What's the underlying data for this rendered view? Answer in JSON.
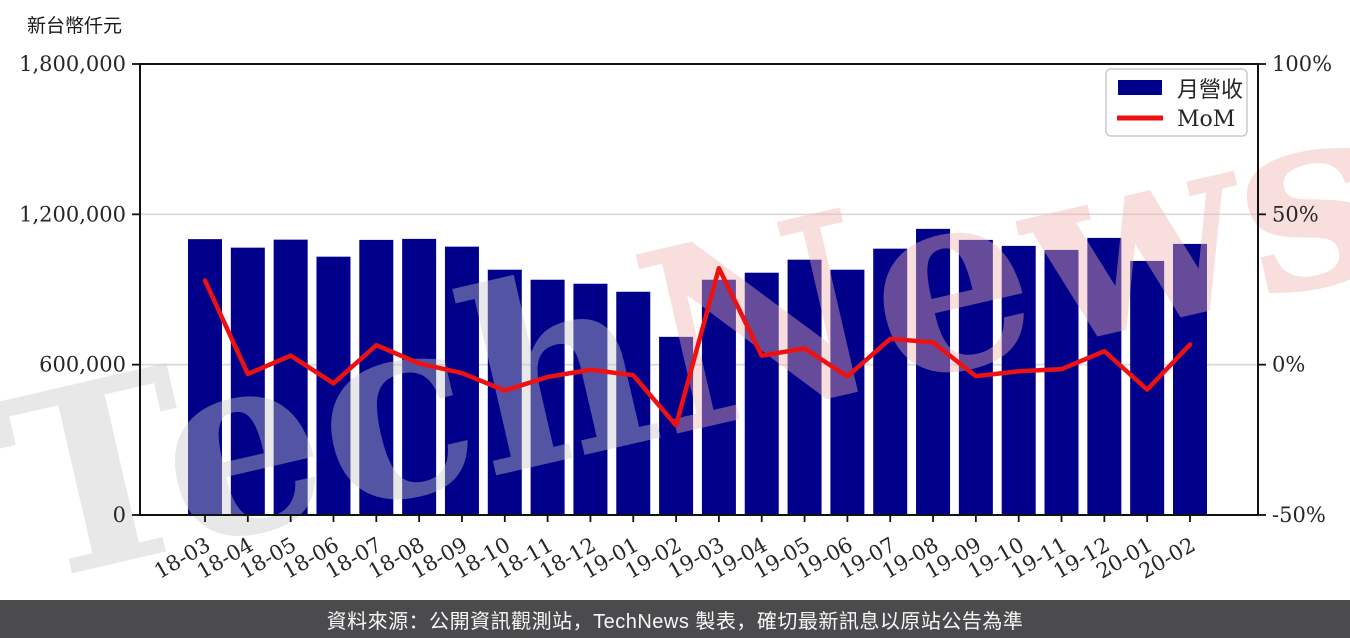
{
  "unit_label": "新台幣仟元",
  "watermark": {
    "text_gray": "Tech",
    "text_pink": "News",
    "gray_color": "#c9c9c9",
    "pink_color": "#f2b3b3",
    "opacity": 0.42
  },
  "legend": {
    "bar_label": "月營收",
    "line_label": "MoM"
  },
  "footer": {
    "text": "資料來源：公開資訊觀測站，TechNews 製表，確切最新訊息以原站公告為準"
  },
  "colors": {
    "bar": "#00008b",
    "line": "#ee1111",
    "grid": "#d9d9d9",
    "axis": "#111111",
    "tick_text": "#262626",
    "footer_bg": "#4b4b4d",
    "footer_text": "#f7f7f7",
    "legend_border": "#cccccc"
  },
  "chart_data": {
    "type": "bar",
    "subtype": "bar+line combo",
    "title": "",
    "categories": [
      "18-03",
      "18-04",
      "18-05",
      "18-06",
      "18-07",
      "18-08",
      "18-09",
      "18-10",
      "18-11",
      "18-12",
      "19-01",
      "19-02",
      "19-03",
      "19-04",
      "19-05",
      "19-06",
      "19-07",
      "19-08",
      "19-09",
      "19-10",
      "19-11",
      "19-12",
      "20-01",
      "20-02"
    ],
    "series": [
      {
        "name": "月營收",
        "type": "bar",
        "axis": "left",
        "color": "#00008b",
        "unit": "新台幣仟元",
        "values": [
          1101000,
          1067000,
          1099000,
          1031000,
          1098000,
          1102000,
          1071000,
          979000,
          939000,
          923000,
          891000,
          711000,
          939000,
          967000,
          1019000,
          979000,
          1063000,
          1142000,
          1098000,
          1074000,
          1058000,
          1106000,
          1014000,
          1082000
        ]
      },
      {
        "name": "MoM",
        "type": "line",
        "axis": "right",
        "color": "#ee1111",
        "unit": "%",
        "values": [
          28.0,
          -3.1,
          3.0,
          -6.2,
          6.5,
          0.4,
          -2.8,
          -8.6,
          -4.1,
          -1.7,
          -3.5,
          -20.2,
          32.1,
          3.0,
          5.4,
          -3.9,
          8.6,
          7.4,
          -3.8,
          -2.2,
          -1.5,
          4.5,
          -8.3,
          6.7
        ]
      }
    ],
    "left_axis": {
      "label": "新台幣仟元",
      "min": 0,
      "max": 1800000,
      "ticks": [
        0,
        600000,
        1200000,
        1800000
      ],
      "tick_labels": [
        "0",
        "600,000",
        "1,200,000",
        "1,800,000"
      ]
    },
    "right_axis": {
      "min": -50,
      "max": 100,
      "ticks": [
        -50,
        0,
        50,
        100
      ],
      "tick_labels": [
        "-50%",
        "0%",
        "50%",
        "100%"
      ]
    },
    "grid": {
      "horizontal_at_left_values": [
        600000,
        1200000
      ],
      "color": "#d9d9d9"
    },
    "legend": {
      "position": "top-right-inside",
      "entries": [
        "月營收",
        "MoM"
      ]
    }
  }
}
